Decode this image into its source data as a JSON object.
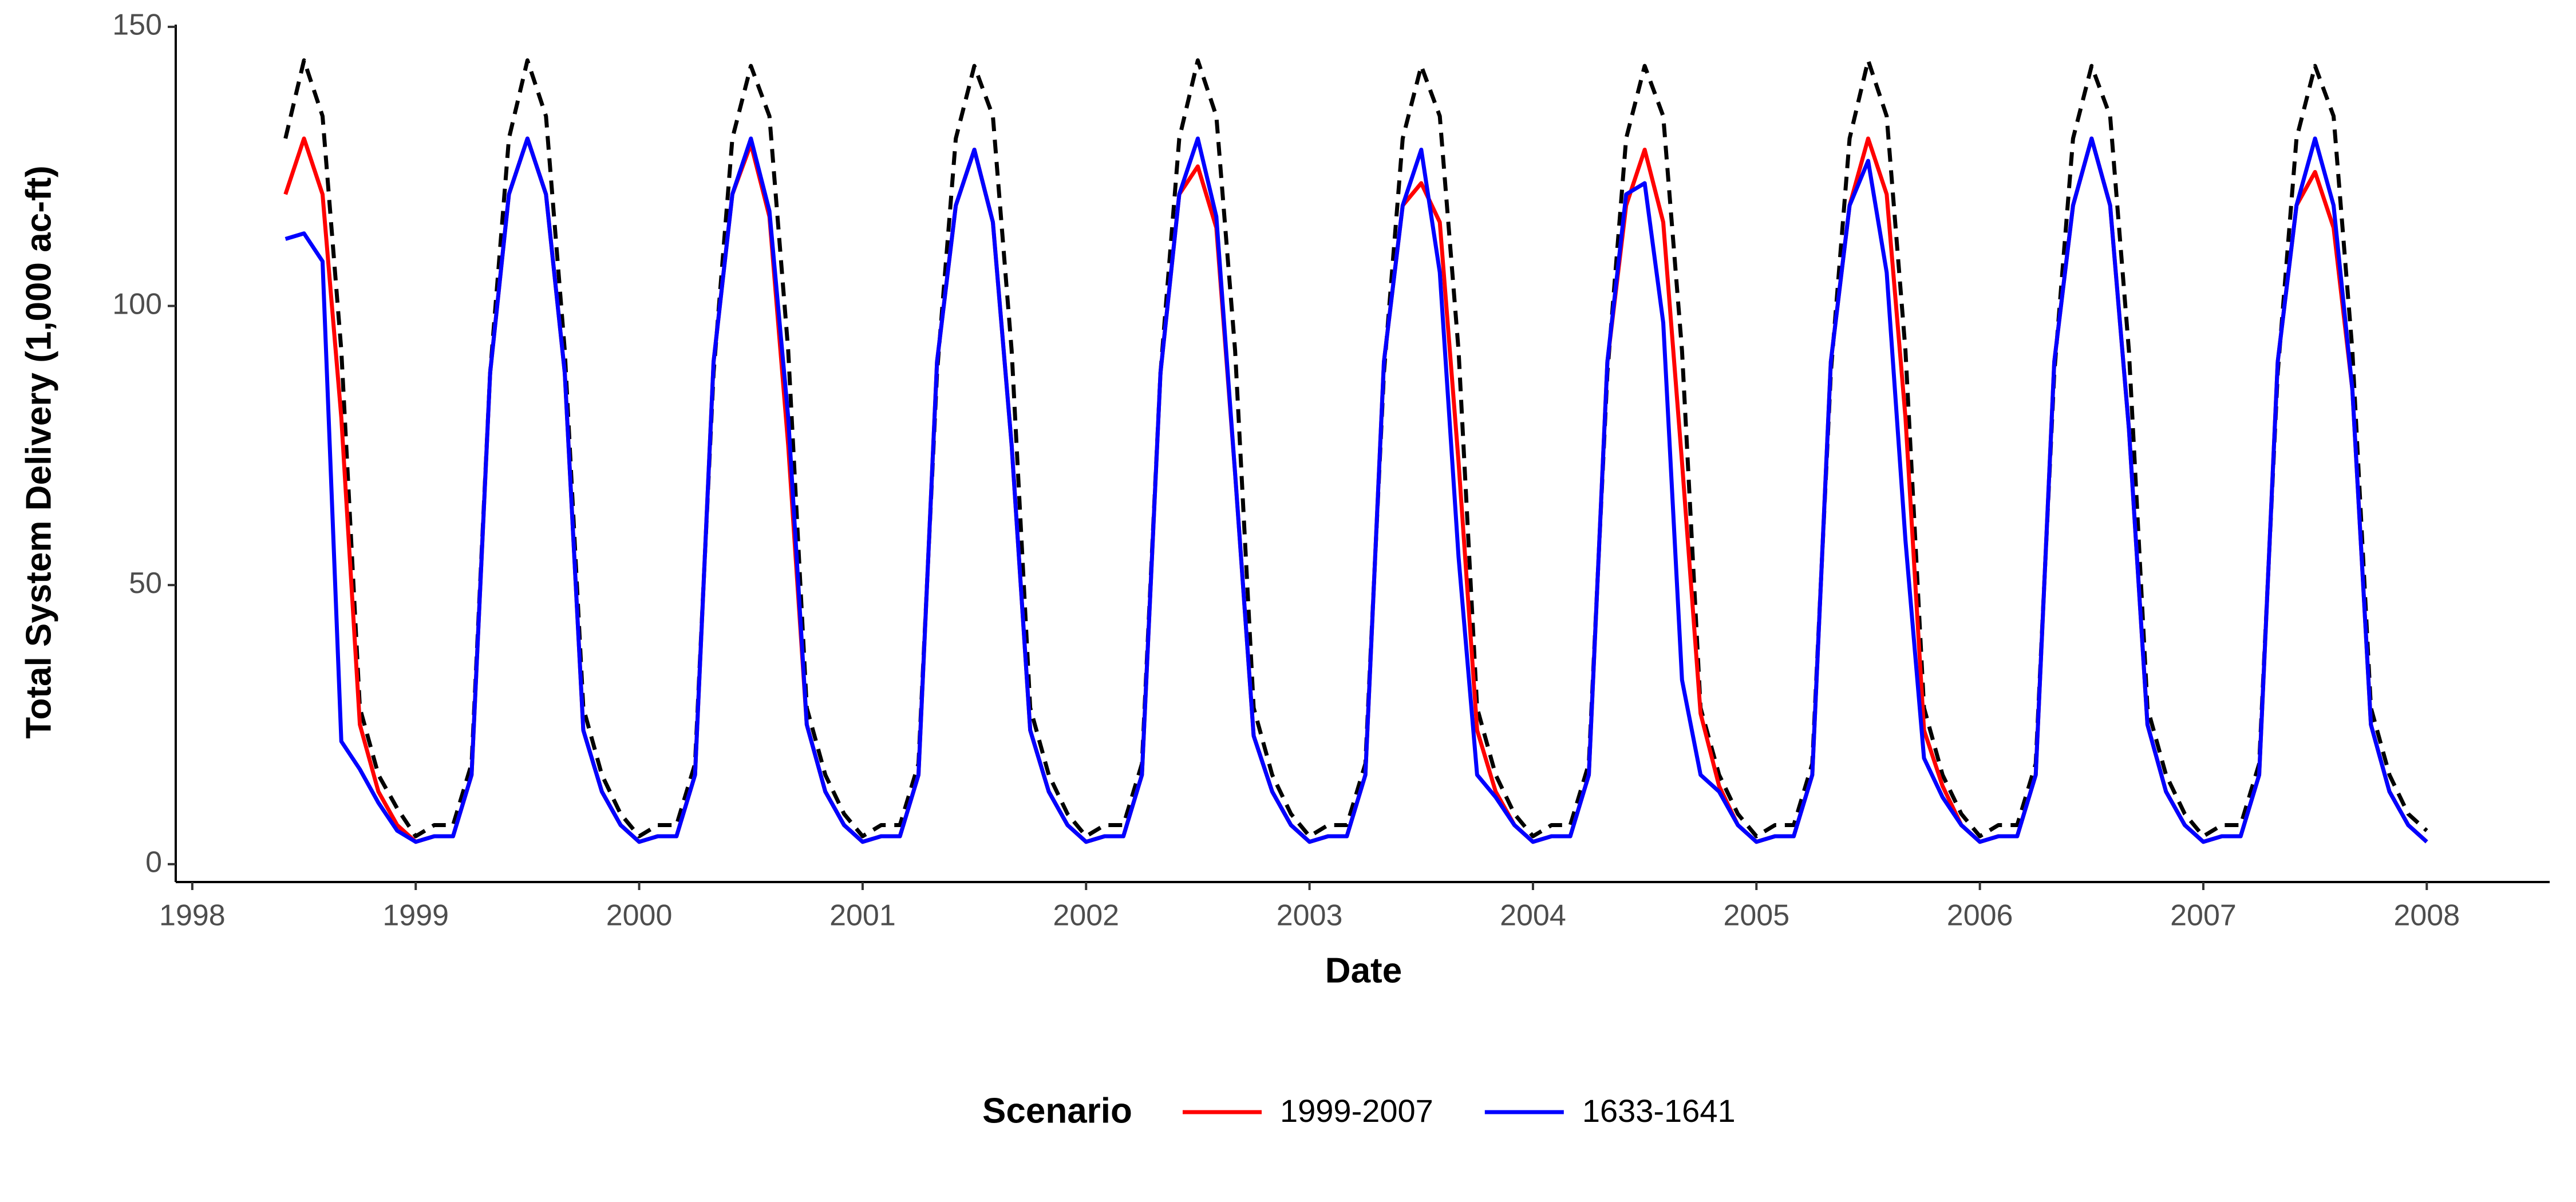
{
  "chart_data": {
    "type": "line",
    "xlabel": "Date",
    "ylabel": "Total System Delivery (1,000 ac-ft)",
    "legend_title": "Scenario",
    "legend": "bottom",
    "x": [
      1998.417,
      1998.5,
      1998.583,
      1998.667,
      1998.75,
      1998.833,
      1998.917,
      1999,
      1999.083,
      1999.167,
      1999.25,
      1999.333,
      1999.417,
      1999.5,
      1999.583,
      1999.667,
      1999.75,
      1999.833,
      1999.917,
      2000,
      2000.083,
      2000.167,
      2000.25,
      2000.333,
      2000.417,
      2000.5,
      2000.583,
      2000.667,
      2000.75,
      2000.833,
      2000.917,
      2001,
      2001.083,
      2001.167,
      2001.25,
      2001.333,
      2001.417,
      2001.5,
      2001.583,
      2001.667,
      2001.75,
      2001.833,
      2001.917,
      2002,
      2002.083,
      2002.167,
      2002.25,
      2002.333,
      2002.417,
      2002.5,
      2002.583,
      2002.667,
      2002.75,
      2002.833,
      2002.917,
      2003,
      2003.083,
      2003.167,
      2003.25,
      2003.333,
      2003.417,
      2003.5,
      2003.583,
      2003.667,
      2003.75,
      2003.833,
      2003.917,
      2004,
      2004.083,
      2004.167,
      2004.25,
      2004.333,
      2004.417,
      2004.5,
      2004.583,
      2004.667,
      2004.75,
      2004.833,
      2004.917,
      2005,
      2005.083,
      2005.167,
      2005.25,
      2005.333,
      2005.417,
      2005.5,
      2005.583,
      2005.667,
      2005.75,
      2005.833,
      2005.917,
      2006,
      2006.083,
      2006.167,
      2006.25,
      2006.333,
      2006.417,
      2006.5,
      2006.583,
      2006.667,
      2006.75,
      2006.833,
      2006.917,
      2007,
      2007.083,
      2007.167,
      2007.25,
      2007.333,
      2007.417,
      2007.5,
      2007.583,
      2007.667,
      2007.75,
      2007.833,
      2007.917,
      2008
    ],
    "series": [
      {
        "name": "1999-2007",
        "color": "#ff0000",
        "linestyle": "solid",
        "values": [
          120,
          130,
          120,
          80,
          25,
          13,
          7,
          4,
          5,
          5,
          16,
          88,
          120,
          130,
          120,
          88,
          24,
          13,
          7,
          4,
          5,
          5,
          16,
          90,
          120,
          129,
          116,
          75,
          25,
          13,
          7,
          4,
          5,
          5,
          16,
          90,
          118,
          128,
          115,
          75,
          24,
          13,
          7,
          4,
          5,
          5,
          16,
          88,
          120,
          125,
          114,
          70,
          23,
          13,
          7,
          4,
          5,
          5,
          16,
          90,
          118,
          122,
          115,
          72,
          24,
          13,
          7,
          4,
          5,
          5,
          16,
          90,
          118,
          128,
          115,
          72,
          27,
          14,
          7,
          4,
          5,
          5,
          16,
          90,
          118,
          130,
          120,
          80,
          24,
          14,
          7,
          4,
          5,
          5,
          16,
          90,
          118,
          130,
          118,
          78,
          25,
          13,
          7,
          4,
          5,
          5,
          16,
          90,
          118,
          124,
          114,
          85,
          25,
          13,
          7,
          4
        ]
      },
      {
        "name": "1633-1641",
        "color": "#0000ff",
        "linestyle": "solid",
        "values": [
          112,
          113,
          108,
          22,
          17,
          11,
          6,
          4,
          5,
          5,
          16,
          88,
          120,
          130,
          120,
          88,
          24,
          13,
          7,
          4,
          5,
          5,
          16,
          90,
          120,
          130,
          117,
          80,
          25,
          13,
          7,
          4,
          5,
          5,
          16,
          90,
          118,
          128,
          115,
          75,
          24,
          13,
          7,
          4,
          5,
          5,
          16,
          88,
          120,
          130,
          116,
          70,
          23,
          13,
          7,
          4,
          5,
          5,
          16,
          90,
          118,
          128,
          106,
          55,
          16,
          12,
          7,
          4,
          5,
          5,
          16,
          90,
          120,
          122,
          97,
          33,
          16,
          13,
          7,
          4,
          5,
          5,
          16,
          90,
          118,
          126,
          106,
          58,
          19,
          12,
          7,
          4,
          5,
          5,
          16,
          90,
          118,
          130,
          118,
          78,
          25,
          13,
          7,
          4,
          5,
          5,
          16,
          90,
          118,
          130,
          118,
          85,
          25,
          13,
          7,
          4
        ]
      },
      {
        "color": "#000000",
        "linestyle": "dashed",
        "values": [
          130,
          144,
          134,
          92,
          28,
          16,
          10,
          5,
          7,
          7,
          18,
          88,
          130,
          144,
          134,
          92,
          28,
          16,
          9,
          5,
          7,
          7,
          18,
          88,
          130,
          143,
          134,
          92,
          28,
          16,
          9,
          5,
          7,
          7,
          18,
          88,
          130,
          143,
          134,
          92,
          28,
          16,
          9,
          5,
          7,
          7,
          18,
          88,
          130,
          144,
          134,
          92,
          28,
          16,
          9,
          5,
          7,
          7,
          18,
          88,
          130,
          143,
          134,
          92,
          28,
          16,
          9,
          5,
          7,
          7,
          18,
          88,
          130,
          143,
          134,
          92,
          28,
          16,
          9,
          5,
          7,
          7,
          18,
          88,
          130,
          144,
          134,
          92,
          28,
          16,
          9,
          5,
          7,
          7,
          18,
          88,
          130,
          143,
          134,
          92,
          28,
          16,
          9,
          5,
          7,
          7,
          18,
          88,
          130,
          143,
          134,
          92,
          28,
          16,
          9,
          6
        ]
      }
    ],
    "xlim": [
      1997.926,
      2008.55
    ],
    "xticks": [
      1998,
      1999,
      2000,
      2001,
      2002,
      2003,
      2004,
      2005,
      2006,
      2007,
      2008
    ],
    "ylim": [
      -3.2,
      150.4
    ],
    "yticks": [
      0,
      50,
      100,
      150
    ],
    "grid": false
  }
}
